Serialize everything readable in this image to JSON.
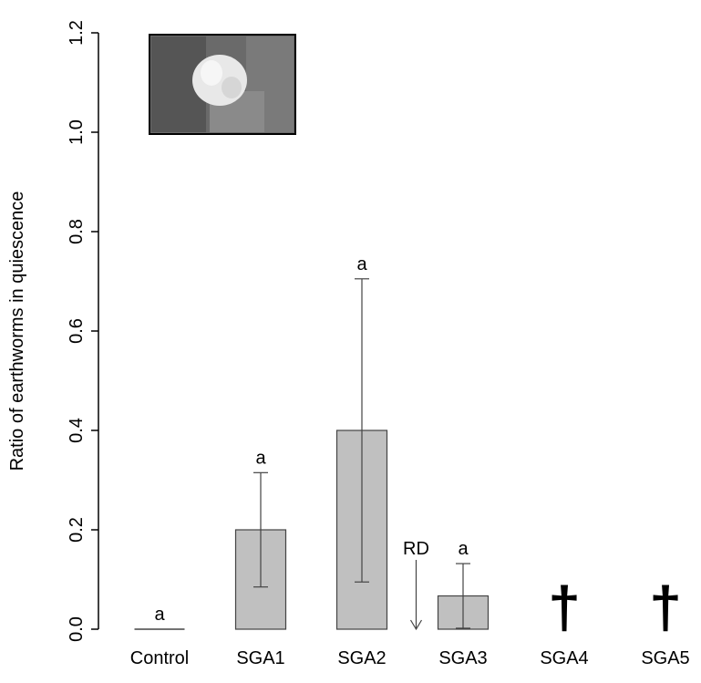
{
  "chart_data": {
    "type": "bar",
    "y_label": "Ratio of earthworms in quiescence",
    "categories": [
      "Control",
      "SGA1",
      "SGA2",
      "SGA3",
      "SGA4",
      "SGA5"
    ],
    "values": [
      0,
      0.2,
      0.4,
      0.067,
      null,
      null
    ],
    "errors": [
      null,
      0.115,
      0.305,
      0.065,
      null,
      null
    ],
    "letters": [
      "a",
      "a",
      "a",
      "a",
      null,
      null
    ],
    "markers": [
      null,
      null,
      null,
      null,
      "†",
      "†"
    ],
    "annotation": "RD",
    "color": "#c0c0c0",
    "ylim": [
      0,
      1.2
    ],
    "yticks": [
      {
        "value": 0,
        "label": "0.0"
      },
      0.2,
      0.4,
      0.6,
      0.8,
      {
        "value": 1,
        "label": "1.0"
      },
      1.2
    ]
  }
}
